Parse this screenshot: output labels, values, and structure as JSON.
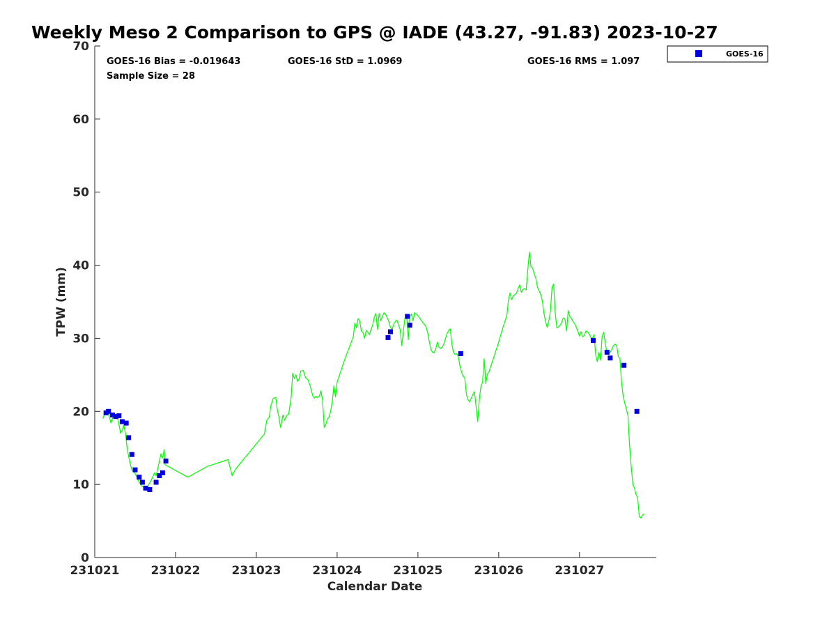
{
  "chart_data": {
    "type": "line",
    "title": "Weekly Meso 2 Comparison to GPS @ IADE (43.27, -91.83) 2023-10-27",
    "xlabel": "Calendar Date",
    "ylabel": "TPW (mm)",
    "x_tick_labels": [
      "231021",
      "231022",
      "231023",
      "231024",
      "231025",
      "231026",
      "231027"
    ],
    "x_tick_values": [
      0,
      1,
      2,
      3,
      4,
      5,
      6
    ],
    "xlim": [
      0,
      6.95
    ],
    "y_ticks": [
      0,
      10,
      20,
      30,
      40,
      50,
      60,
      70
    ],
    "ylim": [
      0,
      70
    ],
    "grid": false,
    "legend_position": "top-right",
    "stats": {
      "bias": "GOES-16 Bias = -0.019643",
      "std": "GOES-16 StD = 1.0969",
      "rms": "GOES-16 RMS = 1.097",
      "sample": "Sample Size = 28"
    },
    "series": [
      {
        "kind": "line",
        "color": "#00ff00",
        "points": [
          [
            0.1,
            19
          ],
          [
            0.12,
            19.6
          ],
          [
            0.15,
            20
          ],
          [
            0.17,
            19.8
          ],
          [
            0.2,
            18.4
          ],
          [
            0.22,
            19
          ],
          [
            0.24,
            19.5
          ],
          [
            0.27,
            19.2
          ],
          [
            0.29,
            18.8
          ],
          [
            0.32,
            17
          ],
          [
            0.34,
            17.4
          ],
          [
            0.36,
            18.1
          ],
          [
            0.38,
            17
          ],
          [
            0.4,
            15
          ],
          [
            0.42,
            13.8
          ],
          [
            0.44,
            12.8
          ],
          [
            0.46,
            12
          ],
          [
            0.5,
            11.5
          ],
          [
            0.54,
            10.5
          ],
          [
            0.58,
            9.8
          ],
          [
            0.62,
            9.5
          ],
          [
            0.66,
            9.8
          ],
          [
            0.7,
            10.6
          ],
          [
            0.74,
            11.6
          ],
          [
            0.76,
            11.2
          ],
          [
            0.78,
            12.2
          ],
          [
            0.8,
            13.2
          ],
          [
            0.82,
            14.2
          ],
          [
            0.84,
            13.6
          ],
          [
            0.86,
            14.8
          ],
          [
            0.87,
            12.7
          ],
          [
            1.15,
            11
          ],
          [
            1.4,
            12.5
          ],
          [
            1.65,
            13.4
          ],
          [
            1.7,
            11.2
          ],
          [
            1.75,
            12.2
          ],
          [
            2.1,
            16.9
          ],
          [
            2.13,
            18.8
          ],
          [
            2.16,
            19.2
          ],
          [
            2.18,
            20.8
          ],
          [
            2.21,
            21.8
          ],
          [
            2.24,
            21.9
          ],
          [
            2.26,
            20.2
          ],
          [
            2.28,
            19.2
          ],
          [
            2.3,
            17.8
          ],
          [
            2.33,
            19.5
          ],
          [
            2.35,
            18.8
          ],
          [
            2.38,
            19.5
          ],
          [
            2.4,
            19.6
          ],
          [
            2.43,
            21.8
          ],
          [
            2.45,
            25.2
          ],
          [
            2.47,
            24.5
          ],
          [
            2.49,
            25
          ],
          [
            2.51,
            24.1
          ],
          [
            2.53,
            24.4
          ],
          [
            2.55,
            25.5
          ],
          [
            2.58,
            25.6
          ],
          [
            2.61,
            24.6
          ],
          [
            2.64,
            24.3
          ],
          [
            2.66,
            23.7
          ],
          [
            2.68,
            22.9
          ],
          [
            2.7,
            22.1
          ],
          [
            2.72,
            21.8
          ],
          [
            2.74,
            22.1
          ],
          [
            2.76,
            21.9
          ],
          [
            2.78,
            22.1
          ],
          [
            2.8,
            22.8
          ],
          [
            2.82,
            21.5
          ],
          [
            2.84,
            17.8
          ],
          [
            2.86,
            18.2
          ],
          [
            2.88,
            19
          ],
          [
            2.9,
            19.2
          ],
          [
            2.92,
            20
          ],
          [
            2.94,
            21.4
          ],
          [
            2.96,
            23.5
          ],
          [
            2.98,
            22
          ],
          [
            3.0,
            24
          ],
          [
            3.1,
            27.3
          ],
          [
            3.2,
            30.2
          ],
          [
            3.22,
            32.1
          ],
          [
            3.24,
            31.4
          ],
          [
            3.26,
            32.7
          ],
          [
            3.28,
            32.3
          ],
          [
            3.3,
            31
          ],
          [
            3.32,
            30.8
          ],
          [
            3.34,
            30
          ],
          [
            3.36,
            31.1
          ],
          [
            3.38,
            30.8
          ],
          [
            3.4,
            30.5
          ],
          [
            3.42,
            31.2
          ],
          [
            3.44,
            31.8
          ],
          [
            3.46,
            32.9
          ],
          [
            3.48,
            33.4
          ],
          [
            3.5,
            31.2
          ],
          [
            3.52,
            33.4
          ],
          [
            3.54,
            32.4
          ],
          [
            3.56,
            33
          ],
          [
            3.58,
            33.5
          ],
          [
            3.6,
            33.3
          ],
          [
            3.62,
            32.8
          ],
          [
            3.64,
            32.3
          ],
          [
            3.66,
            31.5
          ],
          [
            3.68,
            31.2
          ],
          [
            3.7,
            31.9
          ],
          [
            3.72,
            32.3
          ],
          [
            3.74,
            32.5
          ],
          [
            3.76,
            31.8
          ],
          [
            3.78,
            31.2
          ],
          [
            3.8,
            29
          ],
          [
            3.82,
            31
          ],
          [
            3.84,
            32.8
          ],
          [
            3.86,
            33.3
          ],
          [
            3.88,
            29.8
          ],
          [
            3.9,
            33
          ],
          [
            3.92,
            33.3
          ],
          [
            3.94,
            32.4
          ],
          [
            3.96,
            33.5
          ],
          [
            4.0,
            33.1
          ],
          [
            4.05,
            32.3
          ],
          [
            4.1,
            31.6
          ],
          [
            4.12,
            30.8
          ],
          [
            4.14,
            29.6
          ],
          [
            4.16,
            28.5
          ],
          [
            4.18,
            28.1
          ],
          [
            4.2,
            28
          ],
          [
            4.22,
            28.5
          ],
          [
            4.24,
            29.5
          ],
          [
            4.26,
            28.8
          ],
          [
            4.28,
            28.6
          ],
          [
            4.3,
            28.8
          ],
          [
            4.32,
            29.2
          ],
          [
            4.34,
            29.9
          ],
          [
            4.36,
            30.6
          ],
          [
            4.38,
            31.1
          ],
          [
            4.4,
            31.3
          ],
          [
            4.42,
            29.2
          ],
          [
            4.44,
            28.1
          ],
          [
            4.46,
            27.8
          ],
          [
            4.48,
            27.9
          ],
          [
            4.5,
            27.5
          ],
          [
            4.52,
            26.2
          ],
          [
            4.54,
            25.4
          ],
          [
            4.56,
            24.8
          ],
          [
            4.58,
            24.6
          ],
          [
            4.6,
            22.3
          ],
          [
            4.62,
            21.6
          ],
          [
            4.64,
            21.3
          ],
          [
            4.66,
            21.8
          ],
          [
            4.68,
            22.3
          ],
          [
            4.7,
            22.7
          ],
          [
            4.72,
            20.6
          ],
          [
            4.74,
            18.6
          ],
          [
            4.76,
            21.6
          ],
          [
            4.78,
            23.4
          ],
          [
            4.8,
            24
          ],
          [
            4.82,
            27.2
          ],
          [
            4.84,
            23.8
          ],
          [
            4.86,
            25.1
          ],
          [
            4.88,
            25.4
          ],
          [
            4.9,
            26.1
          ],
          [
            5.0,
            29.5
          ],
          [
            5.05,
            31.4
          ],
          [
            5.1,
            33.1
          ],
          [
            5.12,
            35.2
          ],
          [
            5.14,
            36.2
          ],
          [
            5.16,
            35.3
          ],
          [
            5.18,
            35.8
          ],
          [
            5.2,
            36
          ],
          [
            5.22,
            36.2
          ],
          [
            5.24,
            36.8
          ],
          [
            5.26,
            37.3
          ],
          [
            5.28,
            36.3
          ],
          [
            5.3,
            36.7
          ],
          [
            5.32,
            36.8
          ],
          [
            5.34,
            36.6
          ],
          [
            5.36,
            39.4
          ],
          [
            5.38,
            41.8
          ],
          [
            5.4,
            39.8
          ],
          [
            5.42,
            39.6
          ],
          [
            5.44,
            38.8
          ],
          [
            5.46,
            38.2
          ],
          [
            5.48,
            37
          ],
          [
            5.5,
            36.5
          ],
          [
            5.52,
            36
          ],
          [
            5.54,
            35.1
          ],
          [
            5.56,
            33.4
          ],
          [
            5.58,
            32.3
          ],
          [
            5.6,
            31.5
          ],
          [
            5.62,
            32.4
          ],
          [
            5.64,
            33.7
          ],
          [
            5.66,
            37
          ],
          [
            5.68,
            37.4
          ],
          [
            5.7,
            33.4
          ],
          [
            5.72,
            31.4
          ],
          [
            5.74,
            31.6
          ],
          [
            5.76,
            31.8
          ],
          [
            5.78,
            32.2
          ],
          [
            5.8,
            32.8
          ],
          [
            5.82,
            32.6
          ],
          [
            5.84,
            31
          ],
          [
            5.86,
            33.8
          ],
          [
            5.88,
            33
          ],
          [
            5.9,
            32.7
          ],
          [
            5.92,
            32.3
          ],
          [
            5.94,
            32
          ],
          [
            5.96,
            31.5
          ],
          [
            5.98,
            31
          ],
          [
            6.0,
            30.3
          ],
          [
            6.02,
            30.9
          ],
          [
            6.04,
            30.2
          ],
          [
            6.06,
            30.4
          ],
          [
            6.08,
            31
          ],
          [
            6.1,
            30.9
          ],
          [
            6.12,
            30.6
          ],
          [
            6.14,
            30.1
          ],
          [
            6.16,
            30
          ],
          [
            6.18,
            30.5
          ],
          [
            6.2,
            27.8
          ],
          [
            6.22,
            26.8
          ],
          [
            6.24,
            28.1
          ],
          [
            6.26,
            27
          ],
          [
            6.28,
            30.3
          ],
          [
            6.3,
            30.8
          ],
          [
            6.32,
            29.3
          ],
          [
            6.34,
            28
          ],
          [
            6.36,
            27.8
          ],
          [
            6.38,
            28.1
          ],
          [
            6.4,
            28.5
          ],
          [
            6.42,
            29
          ],
          [
            6.44,
            29.2
          ],
          [
            6.46,
            29
          ],
          [
            6.48,
            27.5
          ],
          [
            6.5,
            27.3
          ],
          [
            6.52,
            24
          ],
          [
            6.54,
            22.1
          ],
          [
            6.56,
            21.1
          ],
          [
            6.58,
            20.3
          ],
          [
            6.6,
            19.4
          ],
          [
            6.62,
            15.3
          ],
          [
            6.64,
            12.5
          ],
          [
            6.66,
            10
          ],
          [
            6.68,
            9.5
          ],
          [
            6.7,
            8.6
          ],
          [
            6.72,
            8.2
          ],
          [
            6.74,
            5.6
          ],
          [
            6.76,
            5.4
          ],
          [
            6.78,
            5.8
          ],
          [
            6.8,
            6
          ]
        ]
      },
      {
        "name": "GOES-16",
        "kind": "scatter",
        "marker": "square",
        "color": "#0000dc",
        "points": [
          [
            0.14,
            19.8
          ],
          [
            0.17,
            20
          ],
          [
            0.22,
            19.5
          ],
          [
            0.26,
            19.3
          ],
          [
            0.3,
            19.4
          ],
          [
            0.34,
            18.6
          ],
          [
            0.39,
            18.4
          ],
          [
            0.42,
            16.4
          ],
          [
            0.46,
            14.1
          ],
          [
            0.5,
            12
          ],
          [
            0.55,
            11
          ],
          [
            0.59,
            10.3
          ],
          [
            0.63,
            9.5
          ],
          [
            0.68,
            9.3
          ],
          [
            0.76,
            10.3
          ],
          [
            0.8,
            11.2
          ],
          [
            0.84,
            11.6
          ],
          [
            0.88,
            13.2
          ],
          [
            3.63,
            30.1
          ],
          [
            3.66,
            30.9
          ],
          [
            3.87,
            33
          ],
          [
            3.9,
            31.8
          ],
          [
            4.53,
            27.9
          ],
          [
            6.17,
            29.7
          ],
          [
            6.34,
            28.1
          ],
          [
            6.38,
            27.3
          ],
          [
            6.55,
            26.3
          ],
          [
            6.71,
            20
          ]
        ]
      }
    ]
  }
}
